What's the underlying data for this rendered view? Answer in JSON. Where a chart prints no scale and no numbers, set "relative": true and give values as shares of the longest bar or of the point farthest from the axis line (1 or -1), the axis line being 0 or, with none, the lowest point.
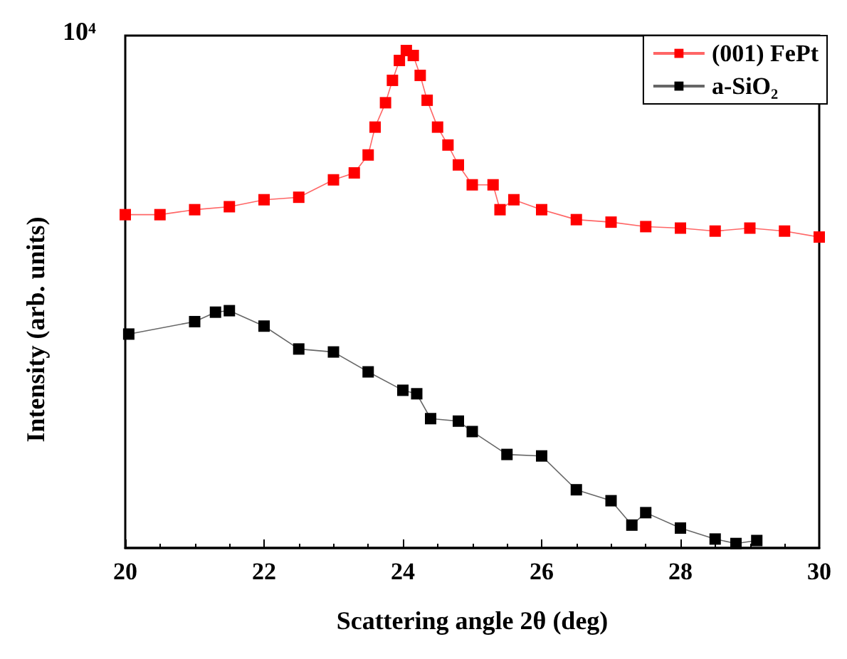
{
  "chart_data": {
    "type": "line",
    "xlabel": "Scattering angle 2θ (deg)",
    "ylabel": "Intensity (arb. units)",
    "relative": true,
    "annotations": [
      "10⁴"
    ],
    "xlim": [
      20,
      30
    ],
    "xticks": [
      20,
      22,
      24,
      26,
      28,
      30
    ],
    "legend": "top right",
    "marker": "square",
    "line_style": "solid",
    "series": [
      {
        "name": "(001) FePt",
        "color": "#ff0000",
        "x": [
          20,
          20.5,
          21,
          21.5,
          22,
          22.5,
          23,
          23.3,
          23.5,
          23.6,
          23.75,
          23.85,
          23.95,
          24.05,
          24.15,
          24.25,
          24.35,
          24.5,
          24.65,
          24.8,
          25,
          25.3,
          25.4,
          25.6,
          26,
          26.5,
          27,
          27.5,
          28,
          28.5,
          29,
          29.5,
          30
        ],
        "values": [
          0.67,
          0.67,
          0.68,
          0.686,
          0.7,
          0.705,
          0.74,
          0.754,
          0.79,
          0.846,
          0.895,
          0.94,
          0.98,
          1,
          0.99,
          0.95,
          0.9,
          0.846,
          0.81,
          0.77,
          0.73,
          0.73,
          0.68,
          0.7,
          0.68,
          0.66,
          0.655,
          0.646,
          0.643,
          0.637,
          0.643,
          0.637,
          0.625
        ]
      },
      {
        "name": "a-SiO₂",
        "color": "#000000",
        "x": [
          20.05,
          21,
          21.3,
          21.5,
          22,
          22.5,
          23,
          23.5,
          24,
          24.2,
          24.4,
          24.8,
          25,
          25.5,
          26,
          26.5,
          27,
          27.3,
          27.5,
          28,
          28.5,
          28.8,
          29.1
        ],
        "values": [
          0.43,
          0.455,
          0.474,
          0.477,
          0.446,
          0.4,
          0.394,
          0.354,
          0.317,
          0.31,
          0.26,
          0.255,
          0.234,
          0.188,
          0.185,
          0.117,
          0.095,
          0.046,
          0.071,
          0.04,
          0.018,
          0.009,
          0.015
        ]
      }
    ]
  }
}
